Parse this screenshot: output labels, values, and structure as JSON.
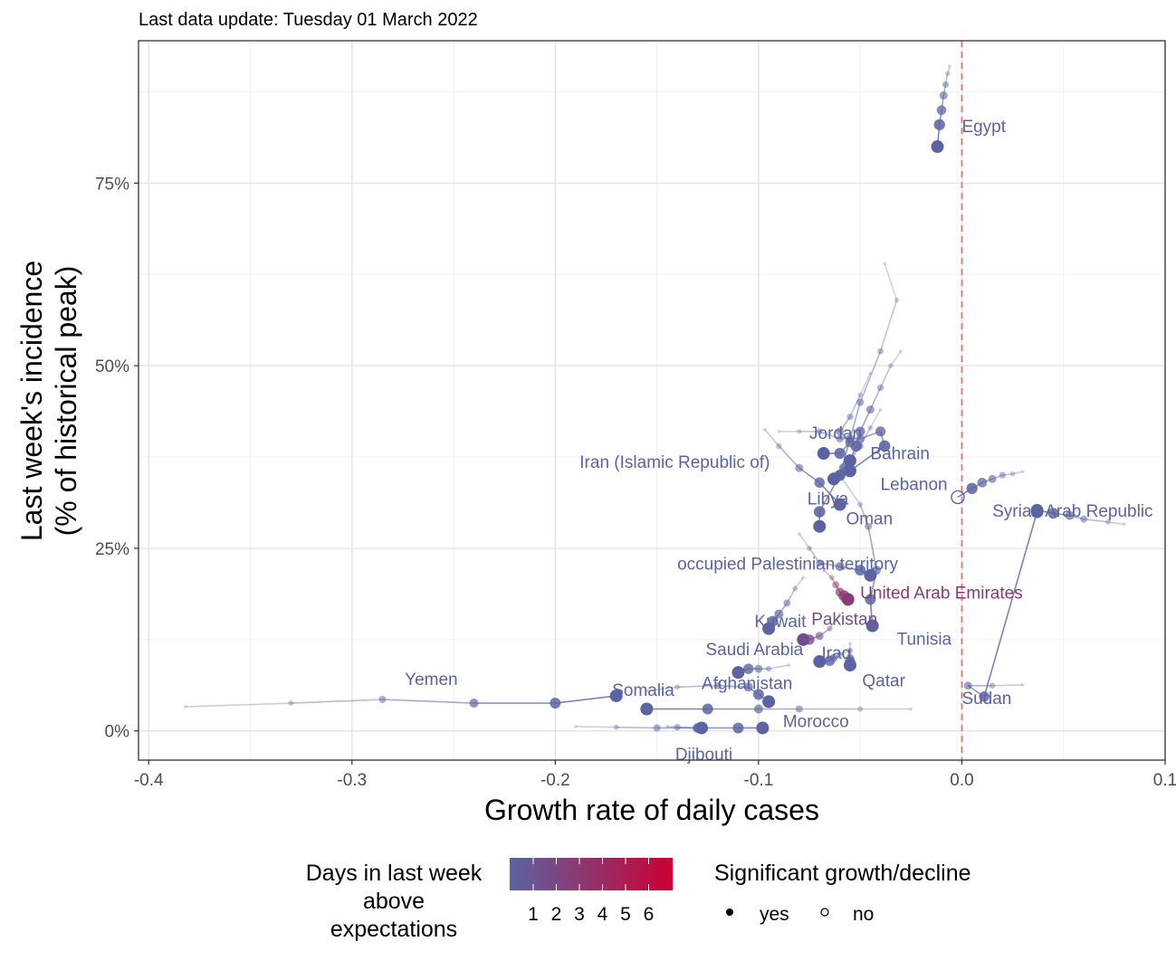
{
  "subtitle": "Last data update: Tuesday 01 March 2022",
  "chart_data": {
    "type": "scatter",
    "xlabel": "Growth rate of daily cases",
    "ylabel_line1": "Last week's incidence",
    "ylabel_line2": "(% of historical peak)",
    "xlim": [
      -0.405,
      0.1
    ],
    "ylim": [
      -0.04,
      0.945
    ],
    "x_ticks": [
      -0.4,
      -0.3,
      -0.2,
      -0.1,
      0.0,
      0.1
    ],
    "x_tick_labels": [
      "-0.4",
      "-0.3",
      "-0.2",
      "-0.1",
      "0.0",
      "0.1"
    ],
    "y_ticks": [
      0,
      0.25,
      0.5,
      0.75
    ],
    "y_tick_labels": [
      "0%",
      "25%",
      "50%",
      "75%"
    ],
    "grid": true,
    "reference_line": {
      "x": 0,
      "color": "#e8756f",
      "style": "dashed"
    },
    "colors": {
      "low": "#5b63a2",
      "high": "#cc0033"
    },
    "series": [
      {
        "name": "Egypt",
        "label": "Egypt",
        "days_above": 1,
        "significant": true,
        "label_pos": [
          0.0,
          0.82
        ],
        "trail": [
          [
            -0.006,
            0.91
          ],
          [
            -0.007,
            0.9
          ],
          [
            -0.008,
            0.885
          ],
          [
            -0.009,
            0.87
          ],
          [
            -0.01,
            0.85
          ],
          [
            -0.011,
            0.83
          ],
          [
            -0.012,
            0.8
          ]
        ]
      },
      {
        "name": "Jordan",
        "label": "Jordan",
        "days_above": 1,
        "significant": true,
        "label_pos": [
          -0.075,
          0.4
        ],
        "trail": [
          [
            -0.045,
            0.49
          ],
          [
            -0.05,
            0.46
          ],
          [
            -0.055,
            0.43
          ],
          [
            -0.06,
            0.41
          ],
          [
            -0.055,
            0.395
          ],
          [
            -0.06,
            0.38
          ],
          [
            -0.068,
            0.38
          ]
        ]
      },
      {
        "name": "Bahrain",
        "label": "Bahrain",
        "days_above": 1,
        "significant": true,
        "label_pos": [
          -0.045,
          0.372
        ],
        "trail": [
          [
            -0.03,
            0.52
          ],
          [
            -0.035,
            0.5
          ],
          [
            -0.04,
            0.47
          ],
          [
            -0.045,
            0.44
          ],
          [
            -0.05,
            0.41
          ],
          [
            -0.052,
            0.39
          ],
          [
            -0.055,
            0.37
          ]
        ]
      },
      {
        "name": "Iran (Islamic Republic of)",
        "label": "Iran (Islamic Republic of)",
        "days_above": 1,
        "significant": true,
        "label_pos": [
          -0.188,
          0.36
        ],
        "trail": [
          [
            -0.04,
            0.44
          ],
          [
            -0.045,
            0.415
          ],
          [
            -0.05,
            0.39
          ],
          [
            -0.055,
            0.37
          ],
          [
            -0.058,
            0.36
          ],
          [
            -0.06,
            0.35
          ],
          [
            -0.063,
            0.345
          ]
        ]
      },
      {
        "name": "Lebanon",
        "label": "Lebanon",
        "days_above": 1,
        "significant": true,
        "label_pos": [
          -0.04,
          0.33
        ],
        "trail": [
          [
            -0.09,
            0.41
          ],
          [
            -0.08,
            0.41
          ],
          [
            -0.07,
            0.41
          ],
          [
            -0.06,
            0.4
          ],
          [
            -0.05,
            0.4
          ],
          [
            -0.04,
            0.41
          ],
          [
            -0.038,
            0.39
          ],
          [
            -0.055,
            0.356
          ]
        ]
      },
      {
        "name": "Libya",
        "label": "Libya",
        "days_above": 1,
        "significant": true,
        "label_pos": [
          -0.076,
          0.31
        ],
        "trail": [
          [
            -0.097,
            0.413
          ],
          [
            -0.09,
            0.39
          ],
          [
            -0.08,
            0.36
          ],
          [
            -0.07,
            0.34
          ],
          [
            -0.06,
            0.31
          ]
        ]
      },
      {
        "name": "Oman",
        "label": "Oman",
        "days_above": 1,
        "significant": true,
        "label_pos": [
          -0.057,
          0.283
        ],
        "trail": [
          [
            -0.038,
            0.64
          ],
          [
            -0.032,
            0.59
          ],
          [
            -0.04,
            0.52
          ],
          [
            -0.05,
            0.45
          ],
          [
            -0.055,
            0.4
          ],
          [
            -0.06,
            0.35
          ],
          [
            -0.07,
            0.3
          ],
          [
            -0.07,
            0.28
          ]
        ]
      },
      {
        "name": "Syrian Arab Republic",
        "label": "Syrian Arab Republic",
        "days_above": 1,
        "significant": false,
        "label_pos": [
          0.015,
          0.293
        ],
        "trail": [
          [
            0.03,
            0.355
          ],
          [
            0.025,
            0.352
          ],
          [
            0.02,
            0.35
          ],
          [
            0.015,
            0.345
          ],
          [
            0.01,
            0.34
          ],
          [
            0.005,
            0.332
          ],
          [
            -0.002,
            0.32
          ]
        ]
      },
      {
        "name": "Syrian Arab Republic (2)",
        "label": "",
        "days_above": 1,
        "significant": true,
        "label_pos": null,
        "trail": [
          [
            0.08,
            0.283
          ],
          [
            0.072,
            0.286
          ],
          [
            0.06,
            0.29
          ],
          [
            0.053,
            0.295
          ],
          [
            0.045,
            0.298
          ],
          [
            0.037,
            0.302
          ]
        ]
      },
      {
        "name": "occupied Palestinian territory",
        "label": "occupied Palestinian territory",
        "days_above": 1,
        "significant": true,
        "label_pos": [
          -0.14,
          0.221
        ],
        "trail": [
          [
            -0.08,
            0.27
          ],
          [
            -0.075,
            0.25
          ],
          [
            -0.07,
            0.23
          ],
          [
            -0.06,
            0.225
          ],
          [
            -0.05,
            0.22
          ],
          [
            -0.045,
            0.213
          ]
        ]
      },
      {
        "name": "United Arab Emirates",
        "label": "United Arab Emirates",
        "days_above": 3,
        "significant": true,
        "label_pos": [
          -0.05,
          0.181
        ],
        "trail": [
          [
            -0.068,
            0.22
          ],
          [
            -0.064,
            0.21
          ],
          [
            -0.062,
            0.2
          ],
          [
            -0.06,
            0.19
          ],
          [
            -0.058,
            0.185
          ],
          [
            -0.056,
            0.18
          ]
        ]
      },
      {
        "name": "Kuwait",
        "label": "Kuwait",
        "days_above": 1,
        "significant": true,
        "label_pos": [
          -0.102,
          0.142
        ],
        "trail": [
          [
            -0.078,
            0.21
          ],
          [
            -0.082,
            0.195
          ],
          [
            -0.086,
            0.175
          ],
          [
            -0.09,
            0.16
          ],
          [
            -0.093,
            0.15
          ],
          [
            -0.095,
            0.14
          ]
        ]
      },
      {
        "name": "Pakistan",
        "label": "Pakistan",
        "days_above": 2,
        "significant": true,
        "label_pos": [
          -0.074,
          0.145
        ],
        "trail": [
          [
            -0.06,
            0.16
          ],
          [
            -0.065,
            0.14
          ],
          [
            -0.07,
            0.13
          ],
          [
            -0.075,
            0.125
          ],
          [
            -0.078,
            0.125
          ]
        ]
      },
      {
        "name": "Tunisia",
        "label": "Tunisia",
        "days_above": 1,
        "significant": true,
        "label_pos": [
          -0.032,
          0.118
        ],
        "trail": [
          [
            -0.06,
            0.35
          ],
          [
            -0.05,
            0.31
          ],
          [
            -0.046,
            0.28
          ],
          [
            -0.042,
            0.22
          ],
          [
            -0.045,
            0.18
          ],
          [
            -0.044,
            0.144
          ]
        ]
      },
      {
        "name": "Saudi Arabia",
        "label": "Saudi Arabia",
        "days_above": 1,
        "significant": true,
        "label_pos": [
          -0.126,
          0.104
        ],
        "trail": [
          [
            -0.085,
            0.09
          ],
          [
            -0.095,
            0.085
          ],
          [
            -0.1,
            0.085
          ],
          [
            -0.105,
            0.085
          ],
          [
            -0.11,
            0.08
          ]
        ]
      },
      {
        "name": "Iraq",
        "label": "Iraq",
        "days_above": 1,
        "significant": true,
        "label_pos": [
          -0.069,
          0.099
        ],
        "trail": [
          [
            -0.055,
            0.11
          ],
          [
            -0.06,
            0.105
          ],
          [
            -0.063,
            0.1
          ],
          [
            -0.065,
            0.096
          ],
          [
            -0.07,
            0.095
          ]
        ]
      },
      {
        "name": "Qatar",
        "label": "Qatar",
        "days_above": 1,
        "significant": true,
        "label_pos": [
          -0.049,
          0.061
        ],
        "trail": [
          [
            -0.055,
            0.12
          ],
          [
            -0.055,
            0.11
          ],
          [
            -0.055,
            0.1
          ],
          [
            -0.055,
            0.095
          ],
          [
            -0.055,
            0.09
          ]
        ]
      },
      {
        "name": "Yemen",
        "label": "Yemen",
        "days_above": 1,
        "significant": true,
        "label_pos": [
          -0.274,
          0.063
        ],
        "trail": [
          [
            -0.382,
            0.033
          ],
          [
            -0.33,
            0.038
          ],
          [
            -0.285,
            0.043
          ],
          [
            -0.24,
            0.038
          ],
          [
            -0.2,
            0.038
          ],
          [
            -0.17,
            0.048
          ]
        ]
      },
      {
        "name": "Somalia",
        "label": "Somalia",
        "days_above": 1,
        "significant": true,
        "label_pos": [
          -0.172,
          0.048
        ],
        "trail": [
          [
            -0.155,
            0.055
          ],
          [
            -0.14,
            0.06
          ],
          [
            -0.12,
            0.062
          ],
          [
            -0.105,
            0.06
          ],
          [
            -0.1,
            0.05
          ],
          [
            -0.095,
            0.04
          ]
        ]
      },
      {
        "name": "Afghanistan",
        "label": "Afghanistan",
        "days_above": 1,
        "significant": true,
        "label_pos": [
          -0.128,
          0.057
        ],
        "trail": [
          [
            -0.025,
            0.03
          ],
          [
            -0.05,
            0.03
          ],
          [
            -0.08,
            0.03
          ],
          [
            -0.1,
            0.03
          ],
          [
            -0.125,
            0.03
          ],
          [
            -0.155,
            0.03
          ]
        ]
      },
      {
        "name": "Sudan",
        "label": "Sudan",
        "days_above": 1,
        "significant": true,
        "label_pos": [
          0.0,
          0.037
        ],
        "trail": [
          [
            0.03,
            0.063
          ],
          [
            0.015,
            0.062
          ],
          [
            0.003,
            0.062
          ],
          [
            0.011,
            0.047
          ],
          [
            0.037,
            0.3
          ]
        ]
      },
      {
        "name": "Morocco",
        "label": "Morocco",
        "days_above": 1,
        "significant": true,
        "label_pos": [
          -0.088,
          0.005
        ],
        "trail": [
          [
            -0.19,
            0.006
          ],
          [
            -0.17,
            0.005
          ],
          [
            -0.15,
            0.004
          ],
          [
            -0.13,
            0.004
          ],
          [
            -0.11,
            0.004
          ],
          [
            -0.098,
            0.004
          ]
        ]
      },
      {
        "name": "Djibouti",
        "label": "Djibouti",
        "days_above": 1,
        "significant": true,
        "label_pos": [
          -0.141,
          -0.04
        ],
        "trail": [
          [
            -0.145,
            0.006
          ],
          [
            -0.14,
            0.005
          ],
          [
            -0.13,
            0.004
          ],
          [
            -0.128,
            0.004
          ]
        ]
      }
    ]
  },
  "legend": {
    "color_title_line1": "Days in last week",
    "color_title_line2": "above",
    "color_title_line3": "expectations",
    "color_labels": [
      "1",
      "2",
      "3",
      "4",
      "5",
      "6"
    ],
    "shape_title": "Significant growth/decline",
    "shape_yes": "yes",
    "shape_no": "no"
  }
}
